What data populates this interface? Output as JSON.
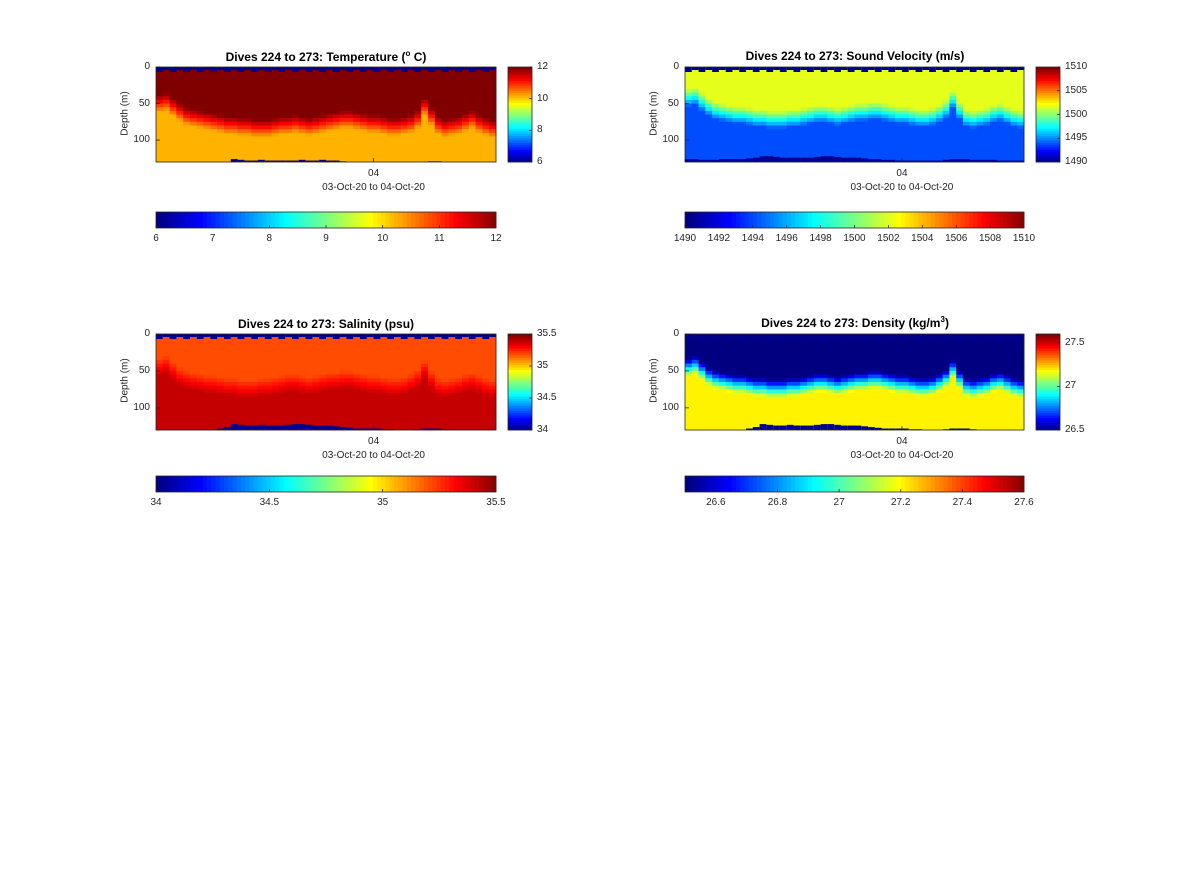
{
  "chart_data": [
    {
      "type": "heatmap",
      "title": "Dives 224 to 273: Temperature (",
      "title_sup": "o",
      "title_end": " C)",
      "ylabel": "Depth (m)",
      "xlabel": "03-Oct-20 to 04-Oct-20",
      "x_ticks": [
        "04"
      ],
      "y_ticks": [
        0,
        50,
        100
      ],
      "ylim": [
        0,
        130
      ],
      "colorbar_right_ticks": [
        "12",
        "10",
        "8",
        "6"
      ],
      "colorbar_bottom_ticks": [
        "6",
        "7",
        "8",
        "9",
        "10",
        "11",
        "12"
      ],
      "clim": [
        6,
        12
      ],
      "colormap": "jet",
      "dives": 50,
      "layers": {
        "surface_value": 12,
        "boundary_depth_m": [
          50,
          48,
          55,
          62,
          68,
          70,
          72,
          74,
          76,
          78,
          80,
          80,
          82,
          82,
          84,
          84,
          84,
          82,
          80,
          80,
          78,
          80,
          82,
          80,
          78,
          76,
          74,
          72,
          72,
          74,
          76,
          78,
          78,
          80,
          82,
          82,
          80,
          78,
          72,
          55,
          68,
          80,
          84,
          82,
          80,
          76,
          72,
          78,
          82,
          85
        ],
        "deep_value": 10.2,
        "bottom_depth_m": [
          132,
          132,
          132,
          132,
          132,
          132,
          132,
          132,
          132,
          132,
          132,
          126,
          127,
          128,
          128,
          127,
          128,
          128,
          128,
          128,
          128,
          127,
          128,
          128,
          127,
          128,
          128,
          129,
          130,
          132,
          132,
          132,
          132,
          132,
          132,
          132,
          132,
          132,
          132,
          130,
          129,
          129,
          130,
          131,
          132,
          132,
          132,
          132,
          132,
          132
        ]
      }
    },
    {
      "type": "heatmap",
      "title": "Dives 224 to 273: Sound Velocity (m/s)",
      "ylabel": "Depth (m)",
      "xlabel": "03-Oct-20 to 04-Oct-20",
      "x_ticks": [
        "04"
      ],
      "y_ticks": [
        0,
        50,
        100
      ],
      "ylim": [
        0,
        130
      ],
      "colorbar_right_ticks": [
        "1510",
        "1505",
        "1500",
        "1495",
        "1490"
      ],
      "colorbar_bottom_ticks": [
        "1490",
        "1492",
        "1494",
        "1496",
        "1498",
        "1500",
        "1502",
        "1504",
        "1506",
        "1508",
        "1510"
      ],
      "clim": [
        1490,
        1510
      ],
      "colormap": "jet",
      "dives": 50,
      "layers": {
        "surface_value": 1502,
        "boundary_depth_m": [
          42,
          40,
          48,
          55,
          60,
          62,
          64,
          66,
          66,
          68,
          70,
          70,
          72,
          72,
          72,
          70,
          70,
          68,
          66,
          64,
          64,
          66,
          68,
          66,
          64,
          62,
          62,
          60,
          60,
          62,
          64,
          66,
          66,
          68,
          70,
          70,
          68,
          64,
          58,
          45,
          60,
          70,
          72,
          70,
          68,
          64,
          62,
          66,
          70,
          72
        ],
        "deep_value": 1494,
        "bottom_depth_m": [
          126,
          126,
          127,
          127,
          127,
          126,
          126,
          126,
          126,
          125,
          124,
          122,
          122,
          123,
          124,
          124,
          124,
          124,
          124,
          123,
          122,
          122,
          123,
          124,
          124,
          124,
          125,
          126,
          126,
          127,
          127,
          128,
          128,
          128,
          128,
          128,
          128,
          128,
          127,
          126,
          126,
          126,
          127,
          127,
          127,
          127,
          128,
          128,
          128,
          128
        ]
      }
    },
    {
      "type": "heatmap",
      "title": "Dives 224 to 273: Salinity (psu)",
      "ylabel": "Depth (m)",
      "xlabel": "03-Oct-20 to 04-Oct-20",
      "x_ticks": [
        "04"
      ],
      "y_ticks": [
        0,
        50,
        100
      ],
      "ylim": [
        0,
        130
      ],
      "colorbar_right_ticks": [
        "35.5",
        "35",
        "34.5",
        "34"
      ],
      "colorbar_bottom_ticks": [
        "34",
        "34.5",
        "35",
        "35.5"
      ],
      "clim": [
        34,
        35.5
      ],
      "colormap": "jet",
      "dives": 50,
      "layers": {
        "surface_value": 35.2,
        "boundary_depth_m": [
          45,
          42,
          50,
          58,
          62,
          64,
          66,
          68,
          68,
          70,
          72,
          72,
          74,
          74,
          74,
          72,
          72,
          70,
          68,
          66,
          66,
          68,
          70,
          68,
          66,
          64,
          64,
          62,
          62,
          64,
          66,
          68,
          68,
          70,
          72,
          72,
          70,
          66,
          60,
          48,
          62,
          72,
          74,
          72,
          70,
          66,
          64,
          68,
          72,
          74
        ],
        "deep_value": 35.4,
        "bottom_depth_m": [
          132,
          132,
          132,
          132,
          132,
          132,
          132,
          132,
          130,
          128,
          126,
          122,
          123,
          124,
          124,
          123,
          124,
          124,
          124,
          123,
          122,
          122,
          123,
          124,
          124,
          124,
          125,
          126,
          127,
          128,
          128,
          128,
          128,
          129,
          129,
          130,
          130,
          130,
          129,
          128,
          128,
          128,
          129,
          130,
          130,
          130,
          131,
          131,
          132,
          132
        ]
      }
    },
    {
      "type": "heatmap",
      "title": "Dives 224 to 273: Density (kg/m",
      "title_sup": "3",
      "title_end": ")",
      "ylabel": "Depth (m)",
      "xlabel": "03-Oct-20 to 04-Oct-20",
      "x_ticks": [
        "04"
      ],
      "y_ticks": [
        0,
        50,
        100
      ],
      "ylim": [
        0,
        130
      ],
      "colorbar_right_ticks": [
        "27.5",
        "27",
        "26.5"
      ],
      "colorbar_bottom_ticks": [
        "26.6",
        "26.8",
        "27",
        "27.2",
        "27.4",
        "27.6"
      ],
      "clim": [
        26.5,
        27.6
      ],
      "colormap": "jet",
      "dives": 50,
      "layers": {
        "surface_value": 26.5,
        "boundary_depth_m": [
          45,
          42,
          50,
          58,
          62,
          64,
          66,
          68,
          68,
          70,
          72,
          72,
          74,
          74,
          74,
          72,
          72,
          70,
          68,
          66,
          66,
          68,
          70,
          68,
          66,
          64,
          64,
          62,
          62,
          64,
          66,
          68,
          68,
          70,
          72,
          72,
          70,
          66,
          60,
          48,
          62,
          72,
          74,
          72,
          70,
          66,
          64,
          68,
          72,
          74
        ],
        "deep_value": 27.2,
        "bottom_depth_m": [
          132,
          132,
          132,
          132,
          132,
          132,
          132,
          132,
          130,
          128,
          126,
          122,
          123,
          124,
          124,
          123,
          124,
          124,
          124,
          123,
          122,
          122,
          123,
          124,
          124,
          124,
          125,
          126,
          127,
          128,
          128,
          128,
          128,
          129,
          129,
          130,
          130,
          130,
          129,
          128,
          128,
          128,
          129,
          130,
          130,
          130,
          131,
          131,
          132,
          132
        ]
      }
    }
  ]
}
